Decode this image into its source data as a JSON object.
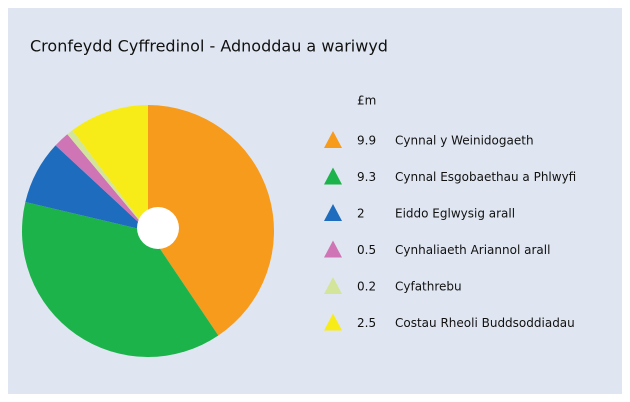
{
  "chart_data": {
    "type": "pie",
    "title": "Cronfeydd Cyffredinol - Adnoddau a wariwyd",
    "legend_title": "£m",
    "categories": [
      "Cynnal y Weinidogaeth",
      "Cynnal Esgobaethau a Phlwyfi",
      "Eiddo Eglwysig arall",
      "Cynhaliaeth Ariannol arall",
      "Cyfathrebu",
      "Costau Rheoli Buddsoddiadau"
    ],
    "values": [
      9.9,
      9.3,
      2.0,
      0.5,
      0.2,
      2.5
    ],
    "colors": [
      "#f79b1c",
      "#1db34b",
      "#1e6cbd",
      "#cf74b4",
      "#d3e59b",
      "#f8ec18"
    ],
    "legend": "right"
  }
}
